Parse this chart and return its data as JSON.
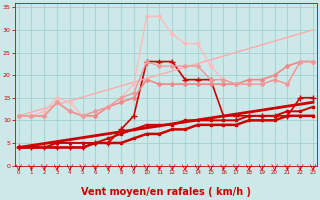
{
  "bg_color": "#cce8e8",
  "grid_color": "#99cccc",
  "xlabel": "Vent moyen/en rafales ( km/h )",
  "xlabel_color": "#cc0000",
  "xlabel_fontsize": 7,
  "xlim": [
    -0.3,
    23.3
  ],
  "ylim": [
    0,
    36
  ],
  "xticks": [
    0,
    1,
    2,
    3,
    4,
    5,
    6,
    7,
    8,
    9,
    10,
    11,
    12,
    13,
    14,
    15,
    16,
    17,
    18,
    19,
    20,
    21,
    22,
    23
  ],
  "yticks": [
    0,
    5,
    10,
    15,
    20,
    25,
    30,
    35
  ],
  "tick_color": "#cc0000",
  "series": [
    {
      "x": [
        0,
        23
      ],
      "y": [
        4,
        14
      ],
      "color": "#cc0000",
      "lw": 2.0,
      "marker": null,
      "ms": 0
    },
    {
      "x": [
        0,
        1,
        2,
        3,
        4,
        5,
        6,
        7,
        8,
        9,
        10,
        11,
        12,
        13,
        14,
        15,
        16,
        17,
        18,
        19,
        20,
        21,
        22,
        23
      ],
      "y": [
        4,
        4,
        4,
        4,
        4,
        4,
        5,
        5,
        5,
        6,
        7,
        7,
        8,
        8,
        9,
        9,
        9,
        9,
        10,
        10,
        10,
        11,
        11,
        11
      ],
      "color": "#cc0000",
      "lw": 1.8,
      "marker": "s",
      "ms": 1.8
    },
    {
      "x": [
        0,
        1,
        2,
        3,
        4,
        5,
        6,
        7,
        8,
        9,
        10,
        11,
        12,
        13,
        14,
        15,
        16,
        17,
        18,
        19,
        20,
        21,
        22,
        23
      ],
      "y": [
        4,
        4,
        4,
        5,
        5,
        5,
        5,
        6,
        7,
        8,
        9,
        9,
        9,
        10,
        10,
        10,
        10,
        10,
        11,
        11,
        11,
        12,
        12,
        13
      ],
      "color": "#cc0000",
      "lw": 1.4,
      "marker": "s",
      "ms": 1.8
    },
    {
      "x": [
        0,
        1,
        2,
        3,
        4,
        5,
        6,
        7,
        8,
        9,
        10,
        11,
        12,
        13,
        14,
        15,
        16,
        17,
        18,
        19,
        20,
        21,
        22,
        23
      ],
      "y": [
        4,
        4,
        4,
        4,
        4,
        4,
        5,
        5,
        8,
        11,
        23,
        23,
        23,
        19,
        19,
        19,
        11,
        11,
        11,
        11,
        11,
        11,
        15,
        15
      ],
      "color": "#cc0000",
      "lw": 1.2,
      "marker": "+",
      "ms": 4
    },
    {
      "x": [
        0,
        1,
        2,
        3,
        4,
        5,
        6,
        7,
        8,
        9,
        10,
        11,
        12,
        13,
        14,
        15,
        16,
        17,
        18,
        19,
        20,
        21,
        22,
        23
      ],
      "y": [
        11,
        11,
        11,
        14,
        12,
        11,
        11,
        13,
        14,
        15,
        19,
        18,
        18,
        18,
        18,
        18,
        18,
        18,
        19,
        19,
        20,
        22,
        23,
        23
      ],
      "color": "#ee8888",
      "lw": 1.2,
      "marker": "D",
      "ms": 2
    },
    {
      "x": [
        0,
        23
      ],
      "y": [
        11,
        30
      ],
      "color": "#ffaaaa",
      "lw": 1.0,
      "marker": null,
      "ms": 0
    },
    {
      "x": [
        0,
        1,
        2,
        3,
        4,
        5,
        6,
        7,
        8,
        9,
        10,
        11,
        12,
        13,
        14,
        15,
        16,
        17,
        18,
        19,
        20,
        21,
        22,
        23
      ],
      "y": [
        11,
        11,
        12,
        15,
        14,
        11,
        12,
        13,
        15,
        18,
        33,
        33,
        29,
        27,
        27,
        22,
        19,
        18,
        18,
        18,
        19,
        18,
        23,
        23
      ],
      "color": "#ffbbbb",
      "lw": 1.0,
      "marker": "D",
      "ms": 2
    },
    {
      "x": [
        0,
        1,
        2,
        3,
        4,
        5,
        6,
        7,
        8,
        9,
        10,
        11,
        12,
        13,
        14,
        15,
        16,
        17,
        18,
        19,
        20,
        21,
        22,
        23
      ],
      "y": [
        11,
        11,
        11,
        14,
        12,
        11,
        12,
        13,
        15,
        16,
        23,
        22,
        22,
        22,
        22,
        19,
        19,
        18,
        18,
        18,
        19,
        18,
        23,
        23
      ],
      "color": "#ee9999",
      "lw": 1.0,
      "marker": "D",
      "ms": 2
    }
  ],
  "arrows_x": [
    0,
    1,
    2,
    3,
    4,
    5,
    6,
    7,
    8,
    9,
    10,
    11,
    12,
    13,
    14,
    15,
    16,
    17,
    18,
    19,
    20,
    21,
    22,
    23
  ],
  "arrow_color": "#cc0000"
}
